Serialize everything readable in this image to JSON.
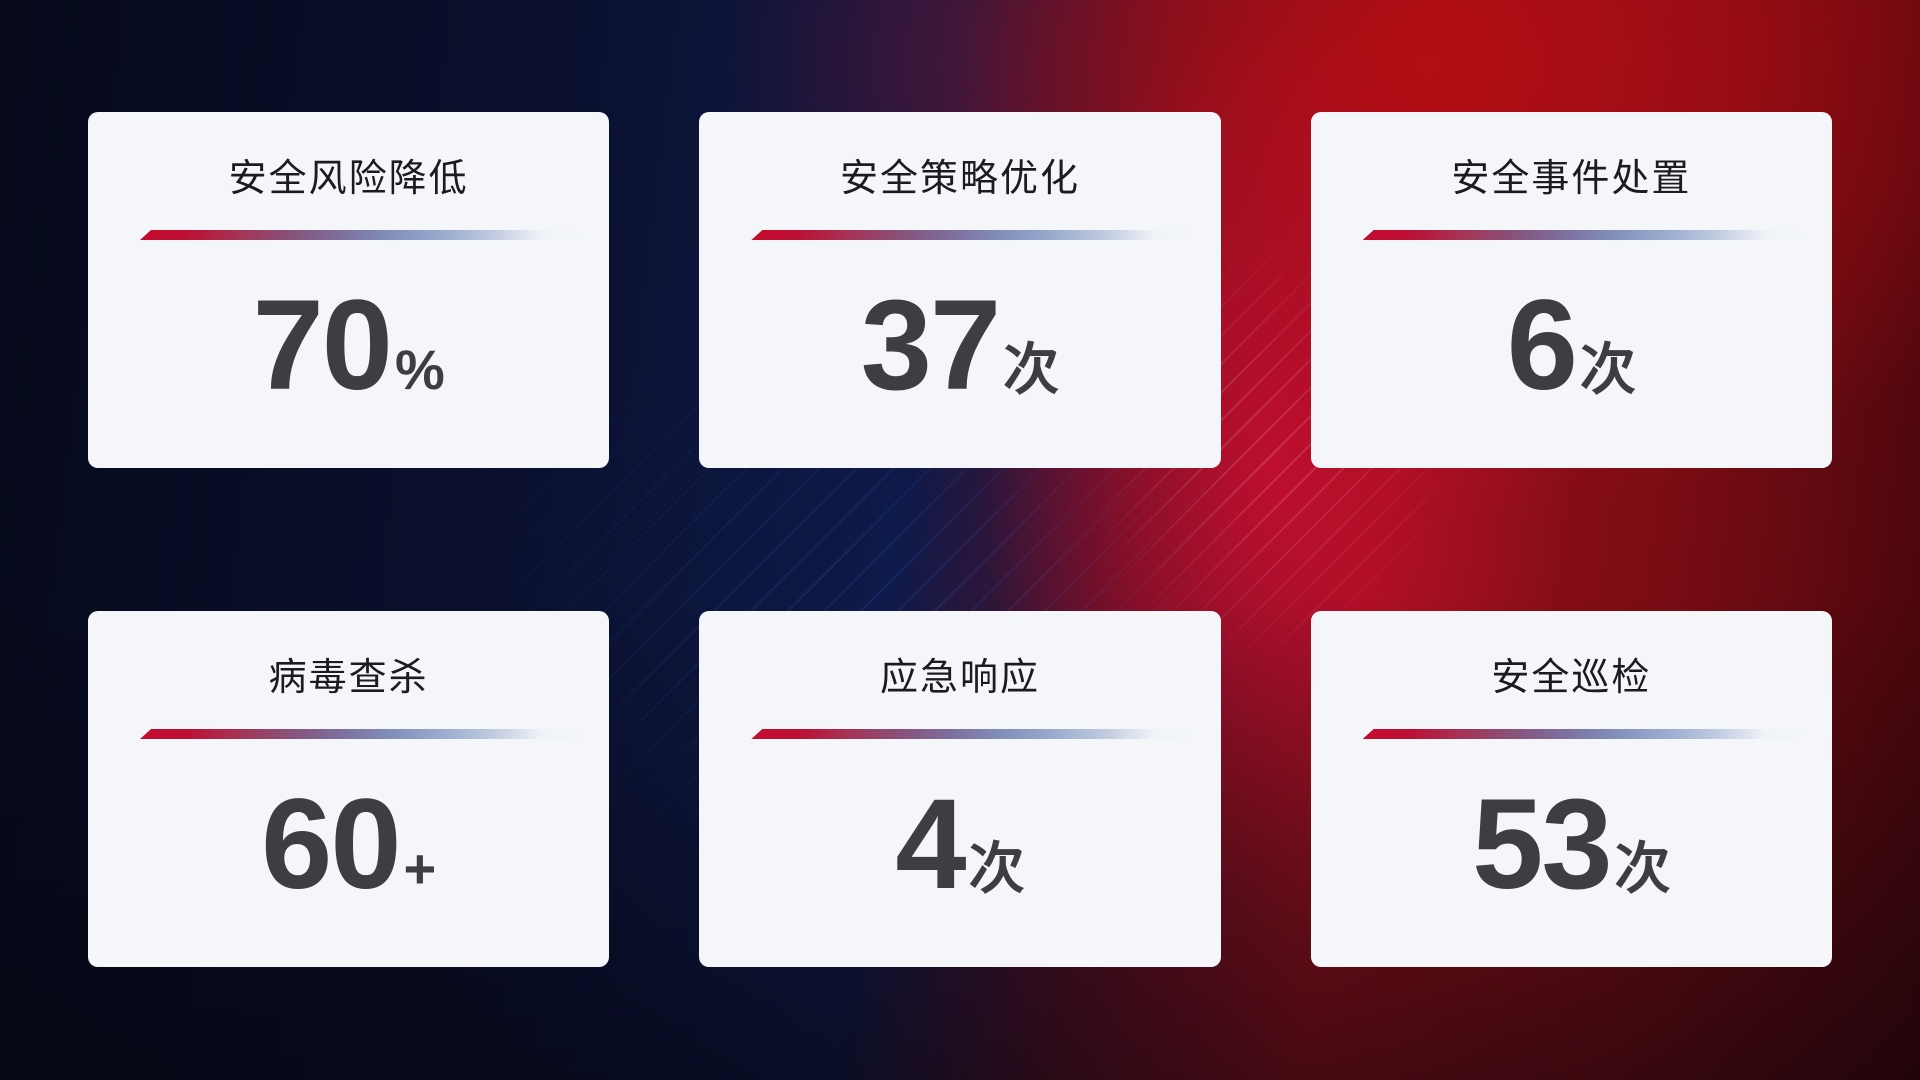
{
  "colors": {
    "accent_red": "#c60b2e",
    "card_bg": "#f4f6f9",
    "title_color": "#1b1c20",
    "number_color": "#3d3e43",
    "bg_navy": "#0e1a4a",
    "bg_red": "#96101c"
  },
  "cards": [
    {
      "title": "安全风险降低",
      "value": "70",
      "unit": "%"
    },
    {
      "title": "安全策略优化",
      "value": "37",
      "unit": "次"
    },
    {
      "title": "安全事件处置",
      "value": "6",
      "unit": "次"
    },
    {
      "title": "病毒查杀",
      "value": "60",
      "unit": "+"
    },
    {
      "title": "应急响应",
      "value": "4",
      "unit": "次"
    },
    {
      "title": "安全巡检",
      "value": "53",
      "unit": "次"
    }
  ]
}
